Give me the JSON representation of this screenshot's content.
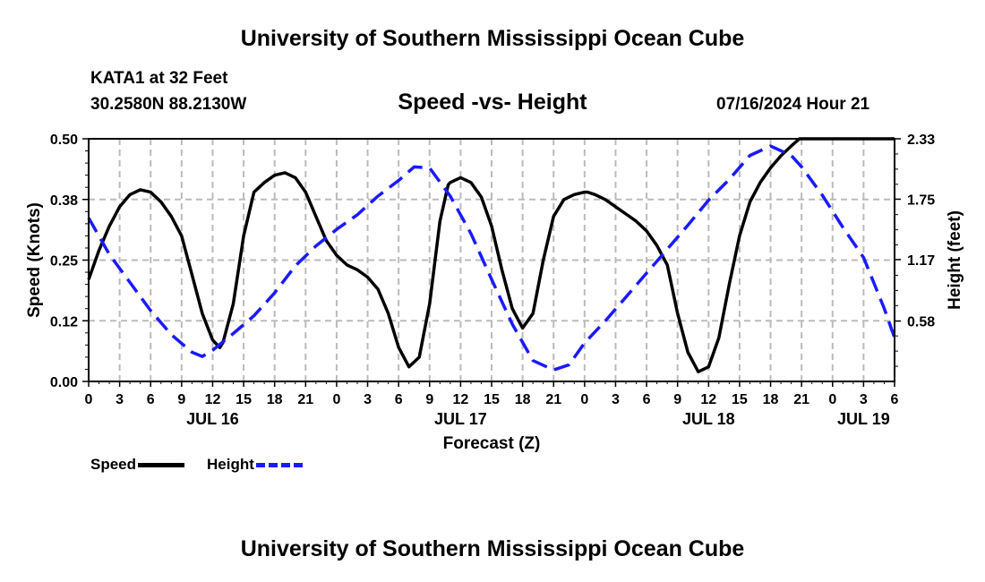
{
  "header": {
    "title": "University of Southern Mississippi Ocean Cube",
    "footer_title": "University of Southern Mississippi Ocean Cube",
    "station": "KATA1 at 32 Feet",
    "coords": "30.2580N  88.2130W",
    "chart_title": "Speed -vs- Height",
    "datetime": "07/16/2024 Hour 21"
  },
  "legend": {
    "speed_label": "Speed",
    "height_label": "Height"
  },
  "colors": {
    "speed": "#000000",
    "height": "#1a1aff",
    "grid": "#bbbbbb"
  },
  "chart_data": {
    "type": "line",
    "title": "Speed -vs- Height",
    "xlabel": "Forecast (Z)",
    "ylabel": "Speed (Knots)",
    "y2label": "Height (feet)",
    "xlim": [
      0,
      78
    ],
    "ylim": [
      0,
      0.5
    ],
    "y2lim": [
      0,
      2.33
    ],
    "grid": true,
    "x_ticks": [
      0,
      3,
      6,
      9,
      12,
      15,
      18,
      21,
      24,
      27,
      30,
      33,
      36,
      39,
      42,
      45,
      48,
      51,
      54,
      57,
      60,
      63,
      66,
      69,
      72,
      75,
      78
    ],
    "x_tick_labels": [
      "0",
      "3",
      "6",
      "9",
      "12",
      "15",
      "18",
      "21",
      "0",
      "3",
      "6",
      "9",
      "12",
      "15",
      "18",
      "21",
      "0",
      "3",
      "6",
      "9",
      "12",
      "15",
      "18",
      "21",
      "0",
      "3",
      "6"
    ],
    "y_ticks": [
      0,
      0.125,
      0.25,
      0.375,
      0.5
    ],
    "y_tick_labels": [
      "0.00",
      "0.12",
      "0.25",
      "0.38",
      "0.50"
    ],
    "y2_ticks": [
      0.58,
      1.17,
      1.75,
      2.33
    ],
    "y2_tick_labels": [
      "0.58",
      "1.17",
      "1.75",
      "2.33"
    ],
    "date_labels": [
      {
        "text": "JUL 16",
        "x": 12
      },
      {
        "text": "JUL 17",
        "x": 36
      },
      {
        "text": "JUL 18",
        "x": 60
      },
      {
        "text": "JUL 19",
        "x": 75
      }
    ],
    "series": [
      {
        "name": "Speed",
        "axis": "left",
        "style": "solid",
        "x": [
          0,
          1,
          2,
          3,
          4,
          5,
          6,
          7,
          8,
          9,
          10,
          11,
          12,
          12.7,
          13,
          14,
          15,
          16,
          17,
          18,
          19,
          20,
          21,
          22,
          23,
          24,
          25,
          26,
          27,
          28,
          29,
          30,
          31,
          32,
          33,
          34,
          34.8,
          35,
          36,
          37,
          38,
          39,
          40,
          41,
          42,
          43,
          44,
          45,
          46,
          47,
          48,
          48.3,
          49,
          50,
          51,
          52,
          53,
          54,
          55,
          56,
          57,
          58,
          59,
          60,
          61,
          62,
          63,
          64,
          65,
          66,
          67,
          68,
          68.8,
          69,
          70,
          71,
          72,
          73,
          74,
          75,
          76,
          77,
          78
        ],
        "values": [
          0.21,
          0.27,
          0.32,
          0.36,
          0.385,
          0.395,
          0.39,
          0.37,
          0.34,
          0.3,
          0.22,
          0.14,
          0.085,
          0.07,
          0.08,
          0.16,
          0.3,
          0.39,
          0.41,
          0.425,
          0.43,
          0.42,
          0.39,
          0.34,
          0.29,
          0.26,
          0.24,
          0.23,
          0.215,
          0.19,
          0.14,
          0.07,
          0.03,
          0.05,
          0.16,
          0.33,
          0.405,
          0.41,
          0.42,
          0.41,
          0.38,
          0.32,
          0.23,
          0.15,
          0.11,
          0.14,
          0.25,
          0.34,
          0.375,
          0.385,
          0.39,
          0.39,
          0.385,
          0.375,
          0.36,
          0.345,
          0.33,
          0.31,
          0.28,
          0.24,
          0.14,
          0.06,
          0.02,
          0.03,
          0.09,
          0.2,
          0.3,
          0.37,
          0.41,
          0.44,
          0.465,
          0.485,
          0.5,
          0.5,
          0.5,
          0.5,
          0.5,
          0.5,
          0.5,
          0.5,
          0.5,
          0.5,
          0.5
        ]
      },
      {
        "name": "Height",
        "axis": "right",
        "style": "dashed",
        "x": [
          0,
          2,
          4,
          6,
          8,
          10,
          11,
          12,
          14,
          16,
          18,
          20,
          22,
          24,
          26,
          28,
          30,
          31.5,
          33,
          35,
          37,
          39,
          41,
          43,
          45,
          46.5,
          48,
          50,
          52,
          54,
          56,
          58,
          60,
          62,
          64,
          66,
          68,
          69,
          71,
          73,
          75,
          77,
          78
        ],
        "values": [
          1.57,
          1.22,
          0.95,
          0.68,
          0.45,
          0.28,
          0.24,
          0.3,
          0.46,
          0.63,
          0.85,
          1.11,
          1.3,
          1.46,
          1.6,
          1.78,
          1.93,
          2.06,
          2.05,
          1.78,
          1.42,
          0.98,
          0.55,
          0.2,
          0.11,
          0.16,
          0.37,
          0.58,
          0.81,
          1.04,
          1.27,
          1.5,
          1.74,
          1.94,
          2.17,
          2.26,
          2.17,
          2.06,
          1.79,
          1.48,
          1.19,
          0.7,
          0.42
        ]
      }
    ]
  }
}
